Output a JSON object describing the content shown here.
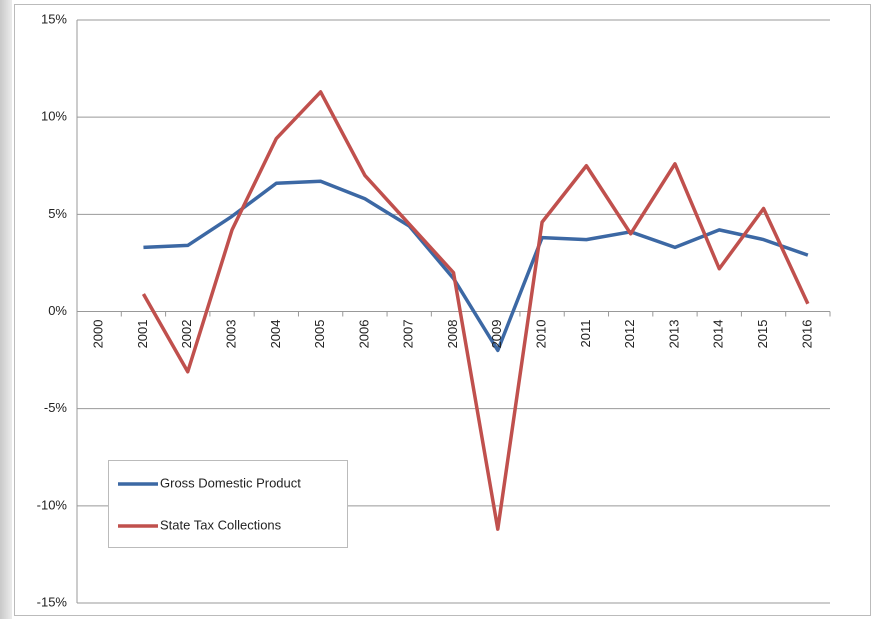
{
  "chart_data": {
    "type": "line",
    "categories": [
      "2000",
      "2001",
      "2002",
      "2003",
      "2004",
      "2005",
      "2006",
      "2007",
      "2008",
      "2009",
      "2010",
      "2011",
      "2012",
      "2013",
      "2014",
      "2015",
      "2016"
    ],
    "series": [
      {
        "name": "Gross Domestic Product",
        "color": "#3c68a4",
        "values": [
          null,
          3.3,
          3.4,
          4.9,
          6.6,
          6.7,
          5.8,
          4.4,
          1.7,
          -2.0,
          3.8,
          3.7,
          4.1,
          3.3,
          4.2,
          3.7,
          2.9
        ]
      },
      {
        "name": "State Tax Collections",
        "color": "#c0504d",
        "values": [
          null,
          0.9,
          -3.1,
          4.2,
          8.9,
          11.3,
          7.0,
          4.5,
          2.0,
          -11.2,
          4.6,
          7.5,
          4.0,
          7.6,
          2.2,
          5.3,
          0.4
        ]
      }
    ],
    "ylim": [
      -15,
      15
    ],
    "yticks": [
      {
        "value": -15,
        "label": "-15%"
      },
      {
        "value": -10,
        "label": "-10%"
      },
      {
        "value": -5,
        "label": "-5%"
      },
      {
        "value": 0,
        "label": "0%"
      },
      {
        "value": 5,
        "label": "5%"
      },
      {
        "value": 10,
        "label": "10%"
      },
      {
        "value": 15,
        "label": "15%"
      }
    ],
    "grid": true,
    "legend": "lower left"
  }
}
